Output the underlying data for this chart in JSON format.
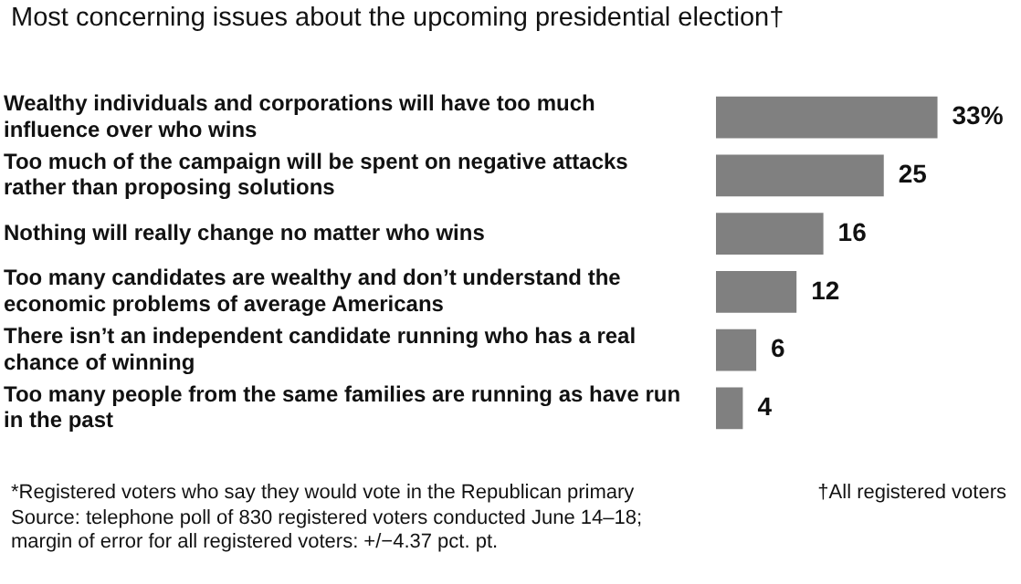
{
  "chart_data": {
    "type": "bar",
    "orientation": "horizontal",
    "title": "Most concerning issues about the upcoming presidential election†",
    "categories": [
      "Wealthy individuals and corporations will have too much influence over who wins",
      "Too much of the campaign will be spent on negative attacks rather than proposing solutions",
      "Nothing will really change no matter who wins",
      "Too many candidates are wealthy and don’t understand the economic problems of average Americans",
      "There isn’t an independent candidate running who has a real chance of winning",
      "Too many people from the same families are running as have run in the past"
    ],
    "values": [
      33,
      25,
      16,
      12,
      6,
      4
    ],
    "value_labels": [
      "33%",
      "25",
      "16",
      "12",
      "6",
      "4"
    ],
    "color": "#808080",
    "tick_labels": "y",
    "grid": false,
    "legend": false,
    "annotations": [
      "*Registered voters who say they would vote in the Republican primary",
      "†All registered voters",
      "Source: telephone poll of 830 registered voters conducted June 14–18;",
      "margin of error for all registered voters: +/−4.37 pct. pt."
    ]
  }
}
